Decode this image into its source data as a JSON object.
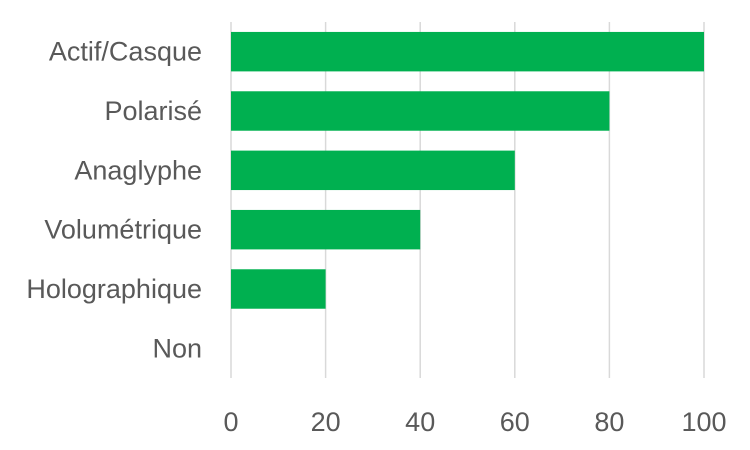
{
  "chart_data": {
    "type": "bar",
    "orientation": "horizontal",
    "categories": [
      "Actif/Casque",
      "Polarisé",
      "Anaglyphe",
      "Volumétrique",
      "Holographique",
      "Non"
    ],
    "values": [
      100,
      80,
      60,
      40,
      20,
      0
    ],
    "xlim": [
      0,
      100
    ],
    "xticks": [
      0,
      20,
      40,
      60,
      80,
      100
    ],
    "bar_color": "#00b050",
    "grid": true,
    "legend": "none",
    "title": "",
    "xlabel": "",
    "ylabel": ""
  }
}
